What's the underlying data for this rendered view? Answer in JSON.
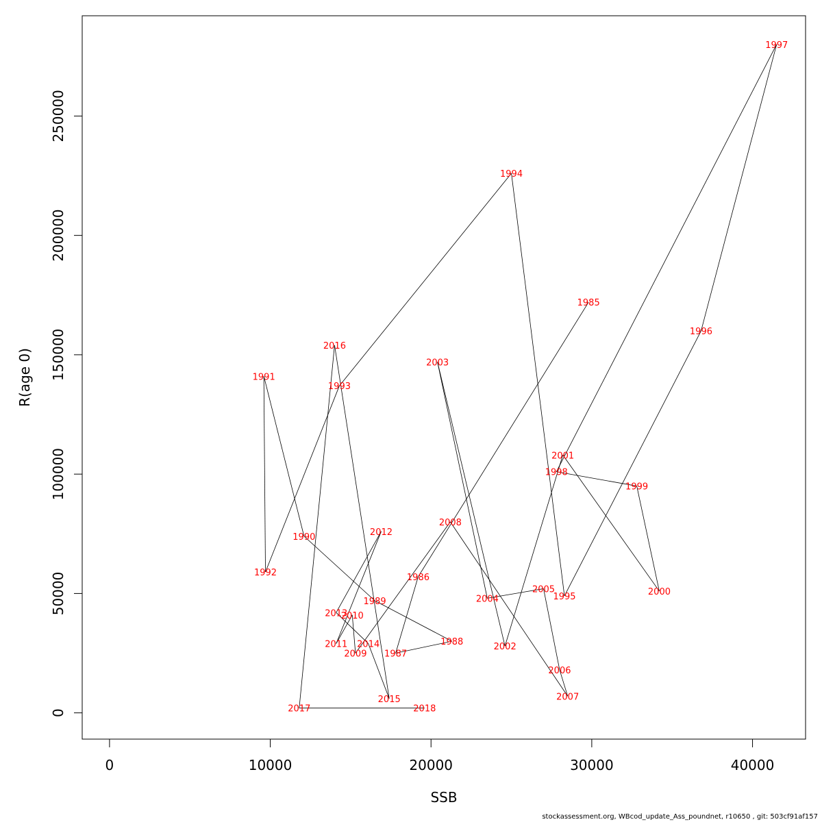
{
  "chart_data": {
    "type": "line",
    "xlabel": "SSB",
    "ylabel": "R(age 0)",
    "xlim": [
      -1700,
      43300
    ],
    "ylim": [
      -11000,
      292000
    ],
    "x_ticks": [
      0,
      10000,
      20000,
      30000,
      40000
    ],
    "y_ticks": [
      0,
      50000,
      100000,
      150000,
      200000,
      250000
    ],
    "x_tick_labels": [
      "0",
      "10000",
      "20000",
      "30000",
      "40000"
    ],
    "y_tick_labels": [
      "0",
      "50000",
      "100000",
      "150000",
      "200000",
      "250000"
    ],
    "grid": false,
    "line_color": "#000000",
    "label_color": "#ff0000",
    "series": [
      {
        "points": [
          {
            "label": "1985",
            "x": 29800,
            "y": 172000
          },
          {
            "label": "1986",
            "x": 19200,
            "y": 57000
          },
          {
            "label": "1987",
            "x": 17800,
            "y": 25000
          },
          {
            "label": "1988",
            "x": 21300,
            "y": 30000
          },
          {
            "label": "1989",
            "x": 16500,
            "y": 47000
          },
          {
            "label": "1990",
            "x": 12100,
            "y": 74000
          },
          {
            "label": "1991",
            "x": 9600,
            "y": 141000
          },
          {
            "label": "1992",
            "x": 9700,
            "y": 59000
          },
          {
            "label": "1993",
            "x": 14300,
            "y": 137000
          },
          {
            "label": "1994",
            "x": 25000,
            "y": 226000
          },
          {
            "label": "1995",
            "x": 28300,
            "y": 49000
          },
          {
            "label": "1996",
            "x": 36800,
            "y": 160000
          },
          {
            "label": "1997",
            "x": 41500,
            "y": 280000
          },
          {
            "label": "1998",
            "x": 27800,
            "y": 101000
          },
          {
            "label": "1999",
            "x": 32800,
            "y": 95000
          },
          {
            "label": "2000",
            "x": 34200,
            "y": 51000
          },
          {
            "label": "2001",
            "x": 28200,
            "y": 108000
          },
          {
            "label": "2002",
            "x": 24600,
            "y": 28000
          },
          {
            "label": "2003",
            "x": 20400,
            "y": 147000
          },
          {
            "label": "2004",
            "x": 23500,
            "y": 48000
          },
          {
            "label": "2005",
            "x": 27000,
            "y": 52000
          },
          {
            "label": "2006",
            "x": 28000,
            "y": 18000
          },
          {
            "label": "2007",
            "x": 28500,
            "y": 7000
          },
          {
            "label": "2008",
            "x": 21200,
            "y": 80000
          },
          {
            "label": "2009",
            "x": 15300,
            "y": 25000
          },
          {
            "label": "2010",
            "x": 15100,
            "y": 41000
          },
          {
            "label": "2011",
            "x": 14100,
            "y": 29000
          },
          {
            "label": "2012",
            "x": 16900,
            "y": 76000
          },
          {
            "label": "2013",
            "x": 14100,
            "y": 42000
          },
          {
            "label": "2014",
            "x": 16100,
            "y": 29000
          },
          {
            "label": "2015",
            "x": 17400,
            "y": 6000
          },
          {
            "label": "2016",
            "x": 14000,
            "y": 154000
          },
          {
            "label": "2017",
            "x": 11800,
            "y": 2000
          },
          {
            "label": "2018",
            "x": 19600,
            "y": 2000
          }
        ]
      }
    ]
  },
  "footer": "stockassessment.org, WBcod_update_Ass_poundnet, r10650 , git: 503cf91af157"
}
